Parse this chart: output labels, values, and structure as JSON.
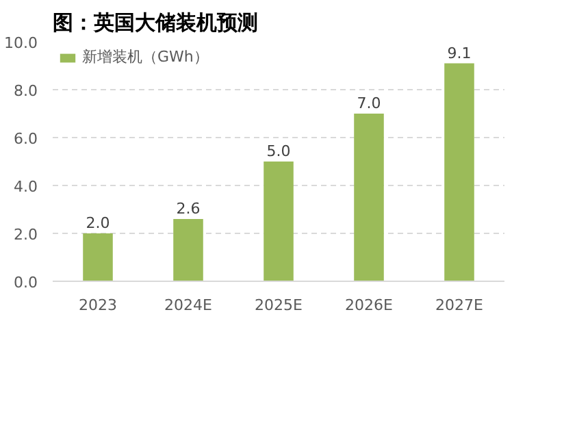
{
  "chart_data": {
    "type": "bar",
    "title": "图：英国大储装机预测",
    "categories": [
      "2023",
      "2024E",
      "2025E",
      "2026E",
      "2027E"
    ],
    "series": [
      {
        "name": "新增装机（GWh）",
        "color": "#9bbb59",
        "values": [
          2.0,
          2.6,
          5.0,
          7.0,
          9.1
        ],
        "value_labels": [
          "2.0",
          "2.6",
          "5.0",
          "7.0",
          "9.1"
        ]
      }
    ],
    "ylim": [
      0,
      10
    ],
    "yticks": [
      {
        "value": 0,
        "label": "0.0"
      },
      {
        "value": 2,
        "label": "2.0"
      },
      {
        "value": 4,
        "label": "4.0"
      },
      {
        "value": 6,
        "label": "6.0"
      },
      {
        "value": 8,
        "label": "8.0"
      },
      {
        "value": 10,
        "label": "10.0"
      }
    ],
    "grid": "y",
    "legend": "top left"
  }
}
